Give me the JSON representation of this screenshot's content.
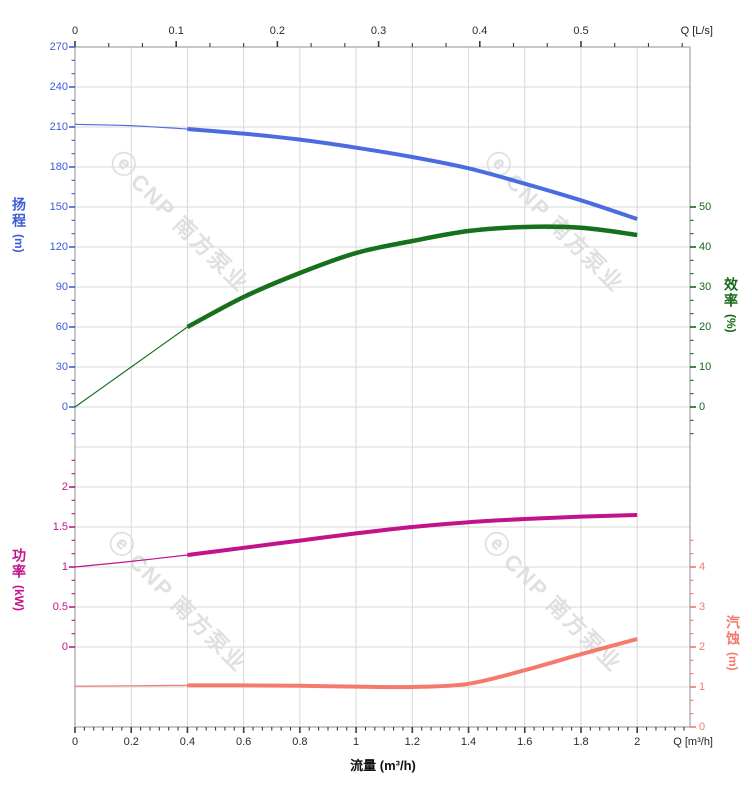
{
  "axes": {
    "top": {
      "unit_label": "Q [L/s]",
      "tick_labels": [
        "0",
        "0.1",
        "0.2",
        "0.3",
        "0.4",
        "0.5"
      ],
      "tick_values": [
        0,
        0.1,
        0.2,
        0.3,
        0.4,
        0.5
      ],
      "color": "#2b2b2b"
    },
    "bottom": {
      "unit_label": "Q [m³/h]",
      "axis_title": "流量 (m³/h)",
      "tick_labels": [
        "0",
        "0.2",
        "0.4",
        "0.6",
        "0.8",
        "1",
        "1.2",
        "1.4",
        "1.6",
        "1.8",
        "2"
      ],
      "tick_values": [
        0,
        0.2,
        0.4,
        0.6,
        0.8,
        1,
        1.2,
        1.4,
        1.6,
        1.8,
        2
      ],
      "color": "#2b2b2b"
    },
    "head": {
      "title": "扬程",
      "unit": "(m)",
      "tick_labels": [
        "270",
        "240",
        "210",
        "180",
        "150",
        "120",
        "90",
        "60",
        "30",
        "0"
      ],
      "tick_values": [
        270,
        240,
        210,
        180,
        150,
        120,
        90,
        60,
        30,
        0
      ],
      "color": "#3f5cd6"
    },
    "efficiency": {
      "title": "效率",
      "unit": "(%)",
      "tick_labels": [
        "50",
        "40",
        "30",
        "20",
        "10",
        "0"
      ],
      "tick_values": [
        50,
        40,
        30,
        20,
        10,
        0
      ],
      "color": "#15691a"
    },
    "power": {
      "title": "功率",
      "unit": "(kW)",
      "tick_labels": [
        "2",
        "1.5",
        "1",
        "0.5",
        "0"
      ],
      "tick_values": [
        2,
        1.5,
        1,
        0.5,
        0
      ],
      "color": "#c2128c"
    },
    "npsh": {
      "title": "汽蚀",
      "unit": "(m)",
      "tick_labels": [
        "4",
        "3",
        "2",
        "1",
        "0"
      ],
      "tick_values": [
        4,
        3,
        2,
        1,
        0
      ],
      "color": "#f5796c"
    }
  },
  "watermark": {
    "logo": "ⓔ",
    "text": "CNP 南方泵业",
    "color": "#e0e0e0"
  },
  "colors": {
    "grid": "#d8d8d8",
    "frame": "#a9a9a9",
    "tick_dark": "#3c3c3c",
    "background": "#ffffff"
  },
  "chart_data": {
    "type": "line",
    "x_label_bottom": "流量 (m³/h)",
    "x_m3h": [
      0,
      0.2,
      0.4,
      0.6,
      0.8,
      1,
      1.2,
      1.4,
      1.6,
      1.8,
      2
    ],
    "x_axis": {
      "bottom_unit": "m³/h",
      "bottom_range": [
        0,
        2.19
      ],
      "bottom_major_step": 0.2,
      "top_unit": "L/s",
      "top_range": [
        0,
        0.608
      ],
      "top_major_step": 0.1,
      "grid": true,
      "legend": "none"
    },
    "series": [
      {
        "name": "head",
        "label": "扬程 (m)",
        "color": "#4b6ce1",
        "y_range": [
          0,
          270
        ],
        "thick_from_x": 0.4,
        "values": [
          212,
          211,
          208.5,
          205,
          200.5,
          194.5,
          187.5,
          179,
          167.5,
          155,
          141
        ]
      },
      {
        "name": "efficiency",
        "label": "效率 (%)",
        "color": "#16701c",
        "y_range": [
          0,
          50
        ],
        "thick_from_x": 0.4,
        "values": [
          0,
          10,
          20,
          27.5,
          33.5,
          38.5,
          41.5,
          44,
          45,
          44.8,
          43
        ]
      },
      {
        "name": "power",
        "label": "功率 (kW)",
        "color": "#c2128c",
        "y_range": [
          0,
          2
        ],
        "thick_from_x": 0.4,
        "values": [
          1.0,
          1.07,
          1.15,
          1.24,
          1.33,
          1.42,
          1.5,
          1.56,
          1.6,
          1.63,
          1.65
        ]
      },
      {
        "name": "npsh",
        "label": "汽蚀 (m)",
        "color": "#f5796c",
        "y_range": [
          0,
          4
        ],
        "thick_from_x": 0.4,
        "values": [
          1.02,
          1.03,
          1.04,
          1.04,
          1.03,
          1.01,
          1.0,
          1.08,
          1.42,
          1.82,
          2.2
        ]
      }
    ]
  }
}
